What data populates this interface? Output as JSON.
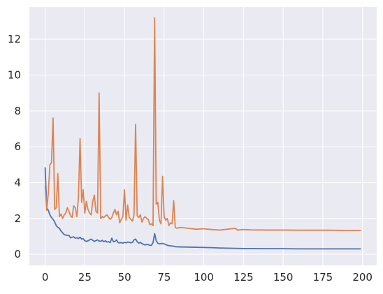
{
  "chart_data": {
    "type": "line",
    "title": "",
    "xlabel": "",
    "ylabel": "",
    "xlim": [
      -9.95,
      208.95
    ],
    "ylim": [
      -0.62,
      13.8
    ],
    "xticks": [
      0,
      25,
      50,
      75,
      100,
      125,
      150,
      175,
      200
    ],
    "yticks": [
      0,
      2,
      4,
      6,
      8,
      10,
      12
    ],
    "grid": true,
    "legend": "none",
    "background_color": "#eaeaf2",
    "grid_color": "#ffffff",
    "series": [
      {
        "color": "#4c72b0",
        "points": [
          [
            0,
            4.85
          ],
          [
            1,
            2.6
          ],
          [
            2,
            2.45
          ],
          [
            3,
            2.2
          ],
          [
            4,
            2.05
          ],
          [
            5,
            1.95
          ],
          [
            6,
            1.8
          ],
          [
            7,
            1.6
          ],
          [
            8,
            1.5
          ],
          [
            9,
            1.45
          ],
          [
            10,
            1.3
          ],
          [
            11,
            1.2
          ],
          [
            12,
            1.1
          ],
          [
            13,
            1.07
          ],
          [
            14,
            1.05
          ],
          [
            15,
            1.05
          ],
          [
            16,
            0.92
          ],
          [
            17,
            0.95
          ],
          [
            18,
            0.97
          ],
          [
            19,
            0.9
          ],
          [
            20,
            0.92
          ],
          [
            21,
            0.88
          ],
          [
            22,
            0.95
          ],
          [
            23,
            0.85
          ],
          [
            24,
            0.87
          ],
          [
            25,
            0.75
          ],
          [
            26,
            0.72
          ],
          [
            27,
            0.75
          ],
          [
            28,
            0.8
          ],
          [
            29,
            0.85
          ],
          [
            30,
            0.78
          ],
          [
            31,
            0.72
          ],
          [
            32,
            0.76
          ],
          [
            33,
            0.8
          ],
          [
            34,
            0.74
          ],
          [
            35,
            0.72
          ],
          [
            36,
            0.78
          ],
          [
            37,
            0.7
          ],
          [
            38,
            0.75
          ],
          [
            39,
            0.68
          ],
          [
            40,
            0.7
          ],
          [
            41,
            0.65
          ],
          [
            42,
            0.9
          ],
          [
            43,
            0.7
          ],
          [
            44,
            0.72
          ],
          [
            45,
            0.8
          ],
          [
            46,
            0.65
          ],
          [
            47,
            0.63
          ],
          [
            48,
            0.65
          ],
          [
            49,
            0.62
          ],
          [
            50,
            0.66
          ],
          [
            51,
            0.64
          ],
          [
            52,
            0.68
          ],
          [
            53,
            0.66
          ],
          [
            54,
            0.64
          ],
          [
            55,
            0.66
          ],
          [
            56,
            0.8
          ],
          [
            57,
            0.85
          ],
          [
            58,
            0.7
          ],
          [
            59,
            0.62
          ],
          [
            60,
            0.66
          ],
          [
            61,
            0.6
          ],
          [
            62,
            0.55
          ],
          [
            63,
            0.52
          ],
          [
            64,
            0.55
          ],
          [
            65,
            0.53
          ],
          [
            66,
            0.5
          ],
          [
            67,
            0.5
          ],
          [
            68,
            0.65
          ],
          [
            69,
            1.15
          ],
          [
            70,
            0.75
          ],
          [
            71,
            0.62
          ],
          [
            72,
            0.58
          ],
          [
            73,
            0.6
          ],
          [
            74,
            0.6
          ],
          [
            75,
            0.58
          ],
          [
            76,
            0.54
          ],
          [
            77,
            0.5
          ],
          [
            78,
            0.48
          ],
          [
            79,
            0.47
          ],
          [
            80,
            0.46
          ],
          [
            81,
            0.45
          ],
          [
            82,
            0.42
          ],
          [
            85,
            0.41
          ],
          [
            90,
            0.4
          ],
          [
            95,
            0.39
          ],
          [
            100,
            0.38
          ],
          [
            105,
            0.37
          ],
          [
            110,
            0.35
          ],
          [
            115,
            0.34
          ],
          [
            120,
            0.33
          ],
          [
            125,
            0.32
          ],
          [
            130,
            0.32
          ],
          [
            140,
            0.31
          ],
          [
            150,
            0.31
          ],
          [
            160,
            0.3
          ],
          [
            170,
            0.3
          ],
          [
            180,
            0.3
          ],
          [
            190,
            0.3
          ],
          [
            199,
            0.3
          ]
        ]
      },
      {
        "color": "#dd8452",
        "points": [
          [
            0,
            3.8
          ],
          [
            1,
            2.45
          ],
          [
            2,
            3.4
          ],
          [
            3,
            5.0
          ],
          [
            4,
            5.1
          ],
          [
            5,
            7.6
          ],
          [
            6,
            2.5
          ],
          [
            7,
            2.6
          ],
          [
            8,
            4.5
          ],
          [
            9,
            2.1
          ],
          [
            10,
            2.25
          ],
          [
            11,
            2.0
          ],
          [
            12,
            2.2
          ],
          [
            13,
            2.3
          ],
          [
            14,
            2.6
          ],
          [
            15,
            2.4
          ],
          [
            16,
            2.15
          ],
          [
            17,
            2.05
          ],
          [
            18,
            2.7
          ],
          [
            19,
            2.6
          ],
          [
            20,
            2.1
          ],
          [
            21,
            3.2
          ],
          [
            22,
            6.45
          ],
          [
            23,
            2.9
          ],
          [
            24,
            3.6
          ],
          [
            25,
            2.3
          ],
          [
            26,
            2.95
          ],
          [
            27,
            2.5
          ],
          [
            28,
            2.3
          ],
          [
            29,
            2.2
          ],
          [
            30,
            2.95
          ],
          [
            31,
            3.3
          ],
          [
            32,
            2.4
          ],
          [
            33,
            2.3
          ],
          [
            34,
            9.0
          ],
          [
            35,
            2.0
          ],
          [
            36,
            2.1
          ],
          [
            37,
            2.05
          ],
          [
            38,
            2.15
          ],
          [
            39,
            2.2
          ],
          [
            40,
            2.05
          ],
          [
            41,
            1.95
          ],
          [
            42,
            2.05
          ],
          [
            43,
            2.3
          ],
          [
            44,
            2.5
          ],
          [
            45,
            2.2
          ],
          [
            46,
            2.4
          ],
          [
            47,
            1.75
          ],
          [
            48,
            1.95
          ],
          [
            49,
            2.1
          ],
          [
            50,
            3.6
          ],
          [
            51,
            1.9
          ],
          [
            52,
            2.75
          ],
          [
            53,
            2.05
          ],
          [
            54,
            1.95
          ],
          [
            55,
            1.85
          ],
          [
            56,
            2.2
          ],
          [
            57,
            7.25
          ],
          [
            58,
            2.15
          ],
          [
            59,
            2.05
          ],
          [
            60,
            2.2
          ],
          [
            61,
            1.8
          ],
          [
            62,
            2.0
          ],
          [
            63,
            2.1
          ],
          [
            64,
            2.0
          ],
          [
            65,
            1.95
          ],
          [
            66,
            1.65
          ],
          [
            67,
            1.7
          ],
          [
            68,
            1.6
          ],
          [
            69,
            13.2
          ],
          [
            70,
            2.8
          ],
          [
            71,
            2.9
          ],
          [
            72,
            1.9
          ],
          [
            73,
            1.7
          ],
          [
            74,
            4.35
          ],
          [
            75,
            2.1
          ],
          [
            76,
            1.9
          ],
          [
            77,
            2.0
          ],
          [
            78,
            1.6
          ],
          [
            79,
            1.75
          ],
          [
            80,
            1.7
          ],
          [
            81,
            3.0
          ],
          [
            82,
            1.5
          ],
          [
            83,
            1.45
          ],
          [
            85,
            1.5
          ],
          [
            90,
            1.45
          ],
          [
            95,
            1.4
          ],
          [
            100,
            1.42
          ],
          [
            105,
            1.38
          ],
          [
            110,
            1.35
          ],
          [
            115,
            1.4
          ],
          [
            120,
            1.45
          ],
          [
            121,
            1.35
          ],
          [
            125,
            1.38
          ],
          [
            130,
            1.36
          ],
          [
            140,
            1.35
          ],
          [
            150,
            1.35
          ],
          [
            160,
            1.34
          ],
          [
            170,
            1.34
          ],
          [
            180,
            1.34
          ],
          [
            190,
            1.33
          ],
          [
            199,
            1.33
          ]
        ]
      }
    ]
  }
}
